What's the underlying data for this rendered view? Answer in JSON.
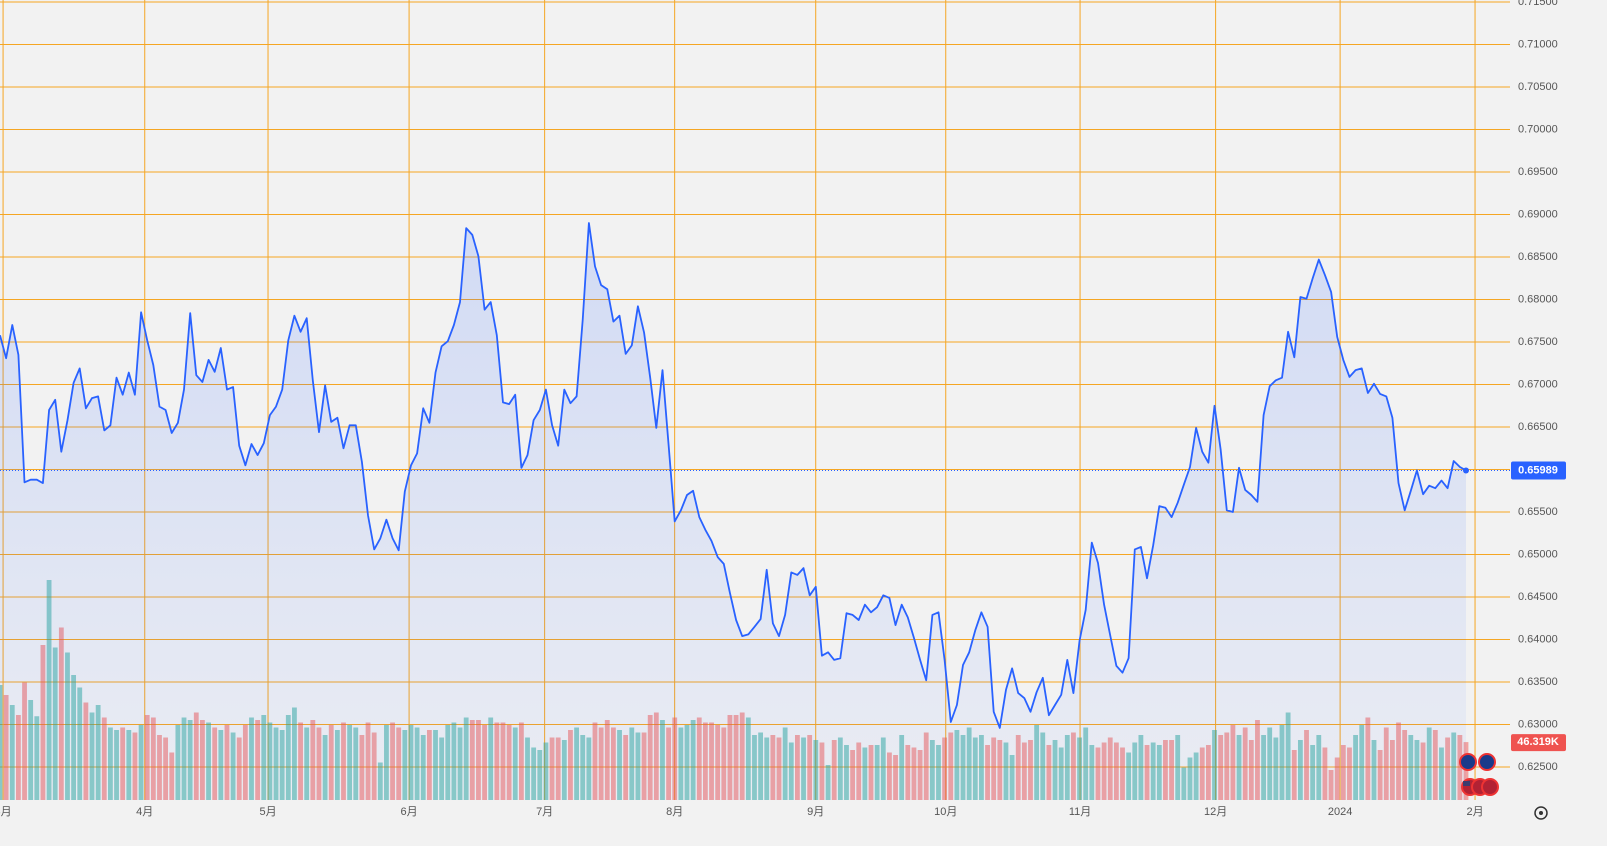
{
  "chart_data": {
    "type": "line",
    "xlim": [
      0,
      246.2
    ],
    "xticks": [
      {
        "value": 0.5,
        "label": "3月"
      },
      {
        "value": 23.6,
        "label": "4月"
      },
      {
        "value": 43.7,
        "label": "5月"
      },
      {
        "value": 66.7,
        "label": "6月"
      },
      {
        "value": 88.8,
        "label": "7月"
      },
      {
        "value": 110.0,
        "label": "8月"
      },
      {
        "value": 133.0,
        "label": "9月"
      },
      {
        "value": 154.2,
        "label": "10月"
      },
      {
        "value": 176.1,
        "label": "11月"
      },
      {
        "value": 198.2,
        "label": "12月"
      },
      {
        "value": 218.5,
        "label": "2024"
      },
      {
        "value": 240.5,
        "label": "2月"
      }
    ],
    "ylim": [
      0.62112,
      0.715
    ],
    "yticks": [
      {
        "value": 0.625,
        "label": "0.62500"
      },
      {
        "value": 0.63,
        "label": "0.63000"
      },
      {
        "value": 0.635,
        "label": "0.63500"
      },
      {
        "value": 0.64,
        "label": "0.64000"
      },
      {
        "value": 0.645,
        "label": "0.64500"
      },
      {
        "value": 0.65,
        "label": "0.65000"
      },
      {
        "value": 0.655,
        "label": "0.65500"
      },
      {
        "value": 0.66,
        "label": "0.66000"
      },
      {
        "value": 0.665,
        "label": "0.66500"
      },
      {
        "value": 0.67,
        "label": "0.67000"
      },
      {
        "value": 0.675,
        "label": "0.67500"
      },
      {
        "value": 0.68,
        "label": "0.68000"
      },
      {
        "value": 0.685,
        "label": "0.68500"
      },
      {
        "value": 0.69,
        "label": "0.69000"
      },
      {
        "value": 0.695,
        "label": "0.69500"
      },
      {
        "value": 0.7,
        "label": "0.70000"
      },
      {
        "value": 0.705,
        "label": "0.70500"
      },
      {
        "value": 0.71,
        "label": "0.71000"
      },
      {
        "value": 0.715,
        "label": "0.71500"
      }
    ],
    "grid": true,
    "grid_color": "#f5a623",
    "price": {
      "color": "#2962ff",
      "values": [
        0.6758,
        0.6731,
        0.677,
        0.6735,
        0.6585,
        0.6588,
        0.6588,
        0.6584,
        0.667,
        0.6682,
        0.6621,
        0.6658,
        0.6702,
        0.6719,
        0.6672,
        0.6684,
        0.6686,
        0.6646,
        0.6652,
        0.6708,
        0.6688,
        0.6714,
        0.6688,
        0.6785,
        0.6752,
        0.6723,
        0.6674,
        0.667,
        0.6643,
        0.6655,
        0.6694,
        0.6784,
        0.6711,
        0.6703,
        0.6729,
        0.6715,
        0.6743,
        0.6694,
        0.6697,
        0.6628,
        0.6605,
        0.663,
        0.6617,
        0.6631,
        0.6664,
        0.6674,
        0.6694,
        0.6752,
        0.6781,
        0.6762,
        0.6778,
        0.6705,
        0.6644,
        0.6699,
        0.6656,
        0.6661,
        0.6625,
        0.6652,
        0.6652,
        0.6609,
        0.6546,
        0.6506,
        0.6519,
        0.6541,
        0.6519,
        0.6505,
        0.6574,
        0.6605,
        0.6619,
        0.6672,
        0.6655,
        0.6714,
        0.6745,
        0.6751,
        0.677,
        0.6797,
        0.6884,
        0.6876,
        0.6851,
        0.6788,
        0.6797,
        0.6758,
        0.6679,
        0.6677,
        0.6688,
        0.6602,
        0.6617,
        0.6658,
        0.667,
        0.6694,
        0.6652,
        0.6628,
        0.6694,
        0.6678,
        0.6686,
        0.6776,
        0.689,
        0.6839,
        0.6817,
        0.6812,
        0.6774,
        0.6781,
        0.6736,
        0.6746,
        0.6792,
        0.6761,
        0.6708,
        0.6649,
        0.6717,
        0.6629,
        0.6539,
        0.6552,
        0.657,
        0.6575,
        0.6544,
        0.6529,
        0.6516,
        0.6497,
        0.6489,
        0.6455,
        0.6423,
        0.6404,
        0.6406,
        0.6415,
        0.6424,
        0.6482,
        0.6419,
        0.6404,
        0.6429,
        0.6479,
        0.6476,
        0.6484,
        0.6452,
        0.6462,
        0.6381,
        0.6385,
        0.6376,
        0.6378,
        0.6431,
        0.6429,
        0.6423,
        0.6441,
        0.6432,
        0.6438,
        0.6452,
        0.6449,
        0.6417,
        0.6441,
        0.6426,
        0.6402,
        0.6376,
        0.6352,
        0.6429,
        0.6432,
        0.6376,
        0.6303,
        0.6323,
        0.637,
        0.6385,
        0.6411,
        0.6432,
        0.6415,
        0.6315,
        0.6296,
        0.6341,
        0.6366,
        0.6337,
        0.6331,
        0.6315,
        0.6338,
        0.6355,
        0.6311,
        0.6323,
        0.6335,
        0.6376,
        0.6337,
        0.6399,
        0.6435,
        0.6514,
        0.649,
        0.6441,
        0.6405,
        0.6369,
        0.6361,
        0.6378,
        0.6506,
        0.6509,
        0.6472,
        0.6511,
        0.6557,
        0.6555,
        0.6544,
        0.6561,
        0.6582,
        0.6603,
        0.6649,
        0.6621,
        0.6608,
        0.6675,
        0.6624,
        0.6552,
        0.655,
        0.6602,
        0.6576,
        0.657,
        0.6562,
        0.6664,
        0.6698,
        0.6705,
        0.6708,
        0.6762,
        0.6732,
        0.6803,
        0.6801,
        0.6825,
        0.6847,
        0.6829,
        0.6809,
        0.6756,
        0.6729,
        0.6709,
        0.6717,
        0.6719,
        0.669,
        0.6701,
        0.6689,
        0.6686,
        0.6661,
        0.6584,
        0.6552,
        0.6575,
        0.6599,
        0.6571,
        0.6581,
        0.6578,
        0.6587,
        0.6578,
        0.661,
        0.6603,
        0.65989
      ]
    },
    "volume": {
      "up_color": "#26a69a",
      "down_color": "#ef5350",
      "label_color": "#ef5350",
      "values": [
        92,
        84,
        76,
        68,
        94,
        80,
        67,
        124,
        176,
        122,
        138,
        118,
        100,
        90,
        78,
        70,
        76,
        66,
        58,
        56,
        58,
        56,
        54,
        60,
        68,
        66,
        52,
        50,
        38,
        60,
        66,
        64,
        70,
        64,
        62,
        58,
        56,
        60,
        54,
        50,
        60,
        66,
        64,
        68,
        62,
        58,
        56,
        68,
        74,
        62,
        58,
        64,
        58,
        52,
        60,
        56,
        62,
        60,
        58,
        52,
        62,
        54,
        30,
        60,
        62,
        58,
        56,
        60,
        58,
        52,
        56,
        56,
        50,
        60,
        62,
        58,
        66,
        64,
        64,
        60,
        66,
        62,
        62,
        60,
        58,
        62,
        50,
        42,
        40,
        46,
        50,
        50,
        48,
        56,
        58,
        52,
        50,
        62,
        58,
        64,
        58,
        56,
        52,
        58,
        54,
        54,
        68,
        70,
        64,
        58,
        66,
        58,
        60,
        64,
        66,
        62,
        62,
        60,
        58,
        68,
        68,
        70,
        66,
        52,
        54,
        50,
        52,
        50,
        58,
        46,
        52,
        50,
        52,
        48,
        46,
        28,
        48,
        50,
        44,
        40,
        46,
        42,
        44,
        44,
        50,
        38,
        36,
        52,
        44,
        42,
        40,
        54,
        48,
        44,
        50,
        54,
        56,
        52,
        58,
        50,
        52,
        44,
        50,
        48,
        46,
        36,
        52,
        46,
        48,
        60,
        54,
        44,
        48,
        42,
        52,
        54,
        50,
        58,
        44,
        42,
        46,
        50,
        46,
        42,
        38,
        46,
        52,
        44,
        46,
        44,
        48,
        48,
        52,
        26,
        34,
        38,
        42,
        44,
        56,
        52,
        54,
        60,
        52,
        58,
        48,
        64,
        52,
        58,
        50,
        60,
        70,
        40,
        48,
        56,
        44,
        52,
        42,
        24,
        34,
        44,
        42,
        52,
        60,
        66,
        48,
        40,
        58,
        48,
        62,
        56,
        52,
        48,
        46,
        58,
        56,
        42,
        50,
        54,
        52,
        46.319
      ],
      "last_value_label": "46.319K"
    }
  }
}
